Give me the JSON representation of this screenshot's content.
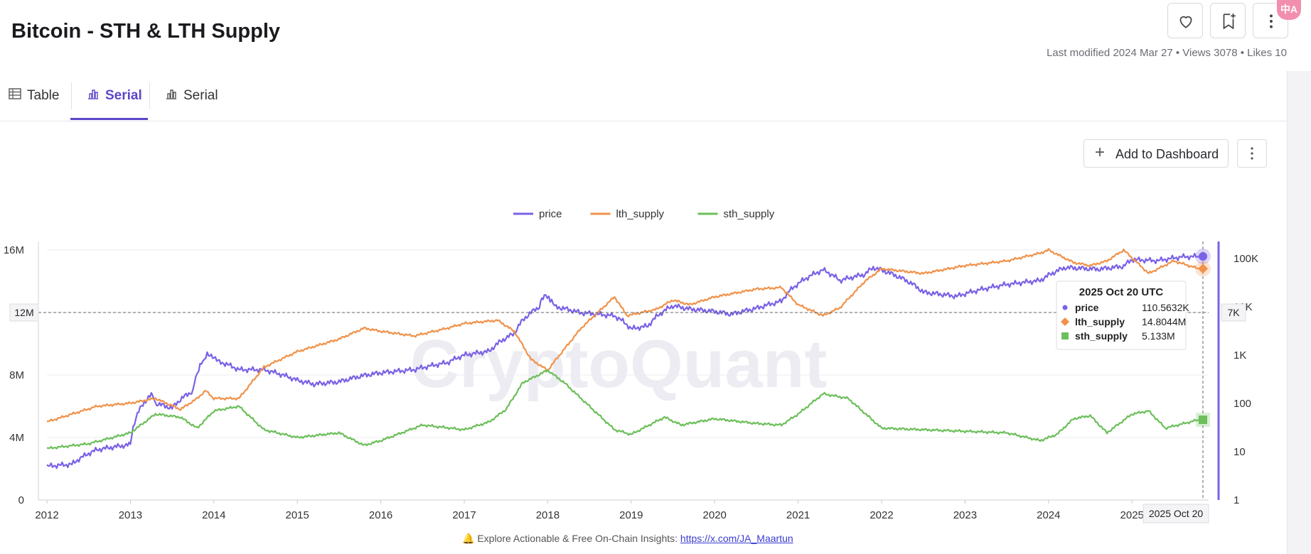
{
  "header": {
    "title": "Bitcoin - STH & LTH Supply",
    "meta": "Last modified 2024 Mar 27 • Views 3078 • Likes 10",
    "translate_badge": "中A",
    "icons": [
      "heart-icon",
      "bookmark-add-icon",
      "more-vertical-icon"
    ]
  },
  "tabs": [
    {
      "label": "Table",
      "icon": "table-icon",
      "active": false
    },
    {
      "label": "Serial",
      "icon": "bar-chart-icon",
      "active": true
    },
    {
      "label": "Serial",
      "icon": "bar-chart-icon",
      "active": false
    }
  ],
  "toolbar": {
    "add_label": "Add to Dashboard",
    "more_icon": "more-vertical-icon"
  },
  "footer": {
    "text": "🔔 Explore Actionable & Free On-Chain Insights: ",
    "link": "https://x.com/JA_Maartun"
  },
  "watermark": "CryptoQuant",
  "chart_data": {
    "type": "line",
    "title": "",
    "legend": [
      {
        "name": "price",
        "color": "#7b61e6"
      },
      {
        "name": "lth_supply",
        "color": "#f0924a"
      },
      {
        "name": "sth_supply",
        "color": "#6cbf5a"
      }
    ],
    "legend_position": "top-center",
    "x_ticks": [
      "2012",
      "2013",
      "2014",
      "2015",
      "2016",
      "2017",
      "2018",
      "2019",
      "2020",
      "2021",
      "2022",
      "2023",
      "2024",
      "2025"
    ],
    "x_range": [
      2012.0,
      2025.85
    ],
    "y_left": {
      "ticks": [
        "0",
        "4M",
        "8M",
        "12M",
        "16M"
      ],
      "range": [
        0,
        16000000
      ]
    },
    "y_right": {
      "scale": "log",
      "ticks": [
        "1",
        "10",
        "100",
        "1K",
        "10K",
        "100K"
      ],
      "range": [
        1,
        150000
      ]
    },
    "crosshair": {
      "date": "2025 Oct 20",
      "y_left_label": "12M",
      "y_right_label": "7K"
    },
    "tooltip": {
      "title": "2025 Oct 20 UTC",
      "rows": [
        {
          "name": "price",
          "value": "110.5632K",
          "color": "#7b61e6",
          "marker": "circle"
        },
        {
          "name": "lth_supply",
          "value": "14.8044M",
          "color": "#f0924a",
          "marker": "diamond"
        },
        {
          "name": "sth_supply",
          "value": "5.133M",
          "color": "#6cbf5a",
          "marker": "square"
        }
      ]
    },
    "series": [
      {
        "name": "price",
        "axis": "right",
        "color": "#7b61e6",
        "x": [
          2012.0,
          2012.3,
          2012.6,
          2013.0,
          2013.25,
          2013.3,
          2013.5,
          2013.75,
          2013.92,
          2014.1,
          2014.3,
          2014.6,
          2015.0,
          2015.2,
          2015.5,
          2015.8,
          2016.0,
          2016.4,
          2016.8,
          2017.0,
          2017.3,
          2017.6,
          2017.9,
          2017.96,
          2018.1,
          2018.4,
          2018.8,
          2019.0,
          2019.2,
          2019.5,
          2019.7,
          2020.0,
          2020.2,
          2020.5,
          2020.8,
          2021.0,
          2021.3,
          2021.5,
          2021.8,
          2021.9,
          2022.2,
          2022.5,
          2022.9,
          2023.2,
          2023.5,
          2023.9,
          2024.2,
          2024.6,
          2024.9,
          2025.0,
          2025.3,
          2025.6,
          2025.8
        ],
        "y": [
          5,
          5.5,
          11,
          14,
          150,
          100,
          80,
          180,
          1000,
          700,
          500,
          500,
          300,
          250,
          280,
          380,
          430,
          500,
          700,
          1000,
          1200,
          2800,
          10000,
          18000,
          10000,
          7500,
          6500,
          3500,
          4000,
          10500,
          9000,
          8000,
          7000,
          9300,
          13000,
          30000,
          58000,
          35000,
          47000,
          65000,
          42000,
          20000,
          16500,
          23000,
          29000,
          35000,
          65000,
          60000,
          69000,
          95000,
          90000,
          108000,
          110563
        ]
      },
      {
        "name": "lth_supply",
        "axis": "left",
        "color": "#f0924a",
        "x": [
          2012.0,
          2012.3,
          2012.6,
          2013.0,
          2013.3,
          2013.6,
          2013.8,
          2013.9,
          2014.0,
          2014.3,
          2014.6,
          2015.0,
          2015.5,
          2015.8,
          2016.0,
          2016.4,
          2016.8,
          2017.0,
          2017.4,
          2017.6,
          2017.8,
          2018.0,
          2018.1,
          2018.4,
          2018.8,
          2018.95,
          2019.3,
          2019.5,
          2019.7,
          2020.0,
          2020.5,
          2020.8,
          2021.0,
          2021.3,
          2021.5,
          2021.8,
          2022.0,
          2022.5,
          2023.0,
          2023.5,
          2023.9,
          2024.0,
          2024.3,
          2024.5,
          2024.7,
          2024.9,
          2025.2,
          2025.5,
          2025.8
        ],
        "y": [
          5.0,
          5.5,
          6.0,
          6.2,
          6.5,
          5.8,
          6.5,
          7.0,
          6.5,
          6.5,
          8.5,
          9.5,
          10.3,
          11.0,
          10.8,
          10.5,
          11.0,
          11.3,
          11.5,
          10.8,
          9.0,
          8.3,
          9.0,
          11.0,
          13.0,
          11.8,
          12.2,
          12.8,
          12.5,
          13.0,
          13.5,
          13.6,
          12.5,
          11.8,
          12.3,
          14.0,
          14.8,
          14.5,
          15.0,
          15.3,
          15.8,
          16.0,
          15.2,
          15.0,
          15.3,
          16.0,
          14.5,
          15.3,
          14.8044
        ]
      },
      {
        "name": "sth_supply",
        "axis": "left",
        "color": "#6cbf5a",
        "x": [
          2012.0,
          2012.5,
          2013.0,
          2013.3,
          2013.6,
          2013.8,
          2014.0,
          2014.3,
          2014.6,
          2015.0,
          2015.5,
          2015.8,
          2016.0,
          2016.5,
          2017.0,
          2017.3,
          2017.5,
          2017.7,
          2018.0,
          2018.2,
          2018.5,
          2018.8,
          2019.0,
          2019.4,
          2019.6,
          2020.0,
          2020.5,
          2020.8,
          2021.0,
          2021.3,
          2021.6,
          2022.0,
          2022.5,
          2023.0,
          2023.5,
          2023.9,
          2024.1,
          2024.3,
          2024.5,
          2024.7,
          2025.0,
          2025.2,
          2025.4,
          2025.8
        ],
        "y": [
          3.3,
          3.6,
          4.3,
          5.5,
          5.3,
          4.6,
          5.7,
          6.0,
          4.5,
          4.0,
          4.3,
          3.5,
          3.8,
          4.8,
          4.5,
          5.0,
          5.8,
          7.5,
          8.3,
          7.5,
          6.0,
          4.5,
          4.2,
          5.3,
          4.8,
          5.2,
          4.9,
          4.8,
          5.5,
          6.8,
          6.5,
          4.6,
          4.5,
          4.4,
          4.3,
          3.8,
          4.2,
          5.2,
          5.4,
          4.3,
          5.5,
          5.7,
          4.6,
          5.133
        ]
      }
    ]
  }
}
